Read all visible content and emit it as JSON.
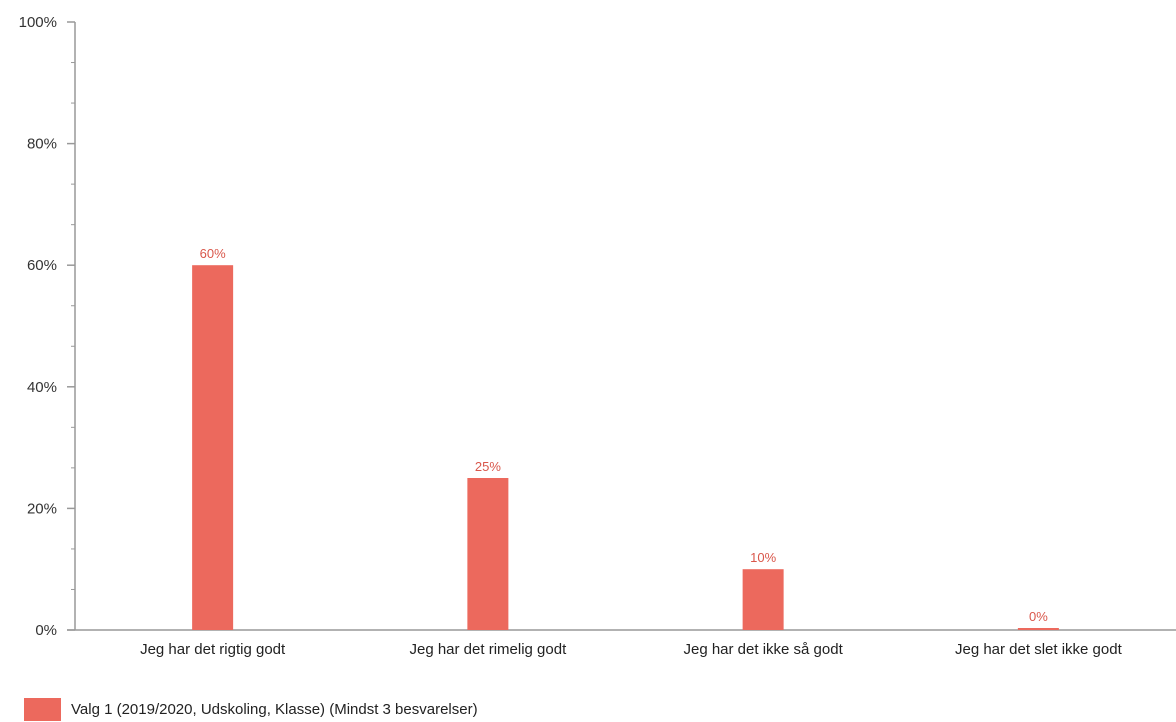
{
  "chart_data": {
    "type": "bar",
    "categories": [
      "Jeg har det rigtig godt",
      "Jeg har det rimelig godt",
      "Jeg har det ikke så godt",
      "Jeg har det slet ikke godt"
    ],
    "series": [
      {
        "name": "Valg 1 (2019/2020, Udskoling, Klasse) (Mindst 3 besvarelser)",
        "values": [
          60,
          25,
          10,
          0
        ],
        "labels": [
          "60%",
          "25%",
          "10%",
          "0%"
        ],
        "color": "#ec695d"
      }
    ],
    "ylim": [
      0,
      100
    ],
    "yticks": [
      0,
      20,
      40,
      60,
      80,
      100
    ],
    "ytick_labels": [
      "0%",
      "20%",
      "40%",
      "60%",
      "80%",
      "100%"
    ],
    "grid": false,
    "legend_position": "bottom-left",
    "title": "",
    "xlabel": "",
    "ylabel": ""
  }
}
